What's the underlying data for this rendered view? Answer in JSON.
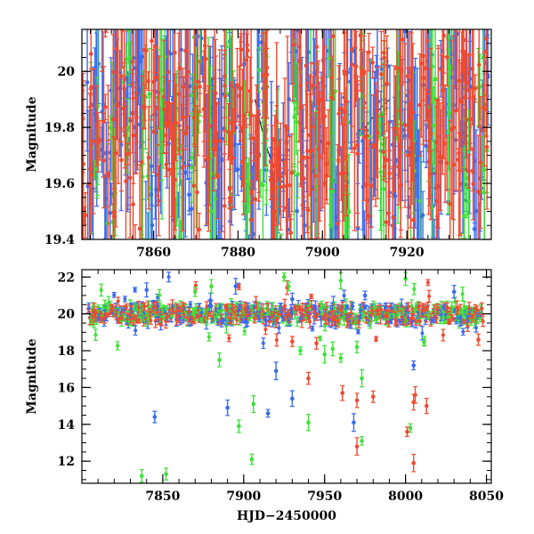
{
  "chart_data": [
    {
      "type": "scatter",
      "title": "",
      "xlabel": "",
      "ylabel": "Magnitude",
      "xlim": [
        7843,
        7940
      ],
      "ylim": [
        20.15,
        19.4
      ],
      "y_inverted": true,
      "x_ticks": [
        "7860",
        "7880",
        "7900",
        "7920"
      ],
      "y_ticks": [
        "19.4",
        "19.6",
        "19.8",
        "20"
      ],
      "grid": false,
      "series": [
        {
          "color": "#3a6bf0",
          "values": [
            [
              7845,
              19.75
            ],
            [
              7847,
              19.9
            ],
            [
              7849,
              19.6
            ],
            [
              7851,
              20.05
            ],
            [
              7853,
              19.7
            ],
            [
              7855,
              19.85
            ],
            [
              7857,
              19.95
            ],
            [
              7859,
              19.55
            ],
            [
              7861,
              19.8
            ],
            [
              7863,
              20.0
            ],
            [
              7865,
              19.65
            ],
            [
              7867,
              19.9
            ],
            [
              7869,
              19.75
            ],
            [
              7871,
              20.05
            ],
            [
              7873,
              19.85
            ],
            [
              7875,
              19.6
            ],
            [
              7877,
              19.95
            ],
            [
              7879,
              19.7
            ],
            [
              7881,
              19.85
            ],
            [
              7883,
              19.5
            ],
            [
              7885,
              19.9
            ],
            [
              7887,
              19.8
            ],
            [
              7889,
              19.45
            ],
            [
              7891,
              19.7
            ],
            [
              7893,
              20.1
            ],
            [
              7895,
              19.6
            ],
            [
              7897,
              19.85
            ],
            [
              7899,
              19.75
            ],
            [
              7901,
              19.95
            ],
            [
              7903,
              19.5
            ],
            [
              7905,
              19.85
            ],
            [
              7907,
              20.05
            ],
            [
              7909,
              19.7
            ],
            [
              7911,
              19.6
            ],
            [
              7913,
              19.9
            ],
            [
              7915,
              19.8
            ],
            [
              7917,
              19.55
            ],
            [
              7919,
              19.95
            ],
            [
              7921,
              19.75
            ],
            [
              7923,
              19.65
            ],
            [
              7925,
              19.9
            ],
            [
              7927,
              19.5
            ],
            [
              7929,
              19.8
            ],
            [
              7931,
              20.0
            ],
            [
              7933,
              19.7
            ],
            [
              7935,
              19.85
            ],
            [
              7937,
              19.6
            ],
            [
              7939,
              19.95
            ]
          ]
        },
        {
          "color": "#3fe03a",
          "values": [
            [
              7846,
              19.8
            ],
            [
              7850,
              19.6
            ],
            [
              7854,
              19.95
            ],
            [
              7858,
              19.7
            ],
            [
              7862,
              19.85
            ],
            [
              7866,
              19.5
            ],
            [
              7870,
              19.9
            ],
            [
              7874,
              19.75
            ],
            [
              7878,
              20.05
            ],
            [
              7882,
              19.6
            ],
            [
              7886,
              19.85
            ],
            [
              7890,
              19.45
            ],
            [
              7894,
              19.9
            ],
            [
              7898,
              19.7
            ],
            [
              7902,
              19.8
            ],
            [
              7906,
              19.55
            ],
            [
              7910,
              19.95
            ],
            [
              7914,
              19.65
            ],
            [
              7918,
              19.85
            ],
            [
              7922,
              19.5
            ],
            [
              7926,
              19.75
            ],
            [
              7930,
              19.9
            ],
            [
              7934,
              19.6
            ],
            [
              7938,
              19.8
            ]
          ]
        },
        {
          "color": "#f04a30",
          "values": [
            [
              7844,
              19.7
            ],
            [
              7846,
              19.85
            ],
            [
              7848,
              19.95
            ],
            [
              7850,
              19.75
            ],
            [
              7852,
              19.9
            ],
            [
              7854,
              19.8
            ],
            [
              7856,
              19.65
            ],
            [
              7858,
              19.95
            ],
            [
              7860,
              19.85
            ],
            [
              7862,
              19.75
            ],
            [
              7864,
              19.9
            ],
            [
              7866,
              19.8
            ],
            [
              7868,
              19.95
            ],
            [
              7870,
              19.7
            ],
            [
              7872,
              19.85
            ],
            [
              7874,
              19.9
            ],
            [
              7876,
              19.75
            ],
            [
              7878,
              19.8
            ],
            [
              7880,
              19.95
            ],
            [
              7882,
              19.85
            ],
            [
              7884,
              19.7
            ],
            [
              7886,
              19.9
            ],
            [
              7888,
              19.55
            ],
            [
              7890,
              19.8
            ],
            [
              7892,
              19.65
            ],
            [
              7894,
              19.9
            ],
            [
              7896,
              19.75
            ],
            [
              7898,
              19.85
            ],
            [
              7900,
              19.7
            ],
            [
              7902,
              19.9
            ],
            [
              7904,
              19.6
            ],
            [
              7906,
              19.8
            ],
            [
              7908,
              19.95
            ],
            [
              7910,
              19.75
            ],
            [
              7912,
              19.85
            ],
            [
              7914,
              19.9
            ],
            [
              7916,
              19.7
            ],
            [
              7918,
              19.8
            ],
            [
              7920,
              19.95
            ],
            [
              7922,
              19.6
            ],
            [
              7924,
              19.85
            ],
            [
              7926,
              19.75
            ],
            [
              7928,
              19.9
            ],
            [
              7930,
              19.8
            ],
            [
              7932,
              19.7
            ],
            [
              7934,
              19.85
            ],
            [
              7936,
              19.75
            ],
            [
              7938,
              19.9
            ]
          ]
        }
      ]
    },
    {
      "type": "scatter",
      "title": "",
      "xlabel": "HJD−2450000",
      "ylabel": "Magnitude",
      "xlim": [
        7800,
        8053
      ],
      "ylim": [
        22.4,
        10.8
      ],
      "y_inverted": true,
      "x_ticks": [
        "7850",
        "7900",
        "7950",
        "8000",
        "8050"
      ],
      "y_ticks": [
        "12",
        "14",
        "16",
        "18",
        "20",
        "22"
      ],
      "grid": false,
      "series": [
        {
          "color": "#3a6bf0",
          "outliers": [
            [
              7845,
              14.4
            ],
            [
              7890,
              14.9
            ],
            [
              7915,
              14.6
            ],
            [
              7930,
              15.4
            ],
            [
              7920,
              16.9
            ],
            [
              7968,
              14.1
            ],
            [
              8005,
              17.2
            ],
            [
              7840,
              21.3
            ],
            [
              7895,
              21.5
            ],
            [
              7930,
              20.8
            ],
            [
              7975,
              21.0
            ],
            [
              8030,
              21.2
            ]
          ]
        },
        {
          "color": "#3fe03a",
          "outliers": [
            [
              7837,
              11.2
            ],
            [
              7852,
              11.3
            ],
            [
              7905,
              12.1
            ],
            [
              7897,
              13.9
            ],
            [
              7940,
              14.1
            ],
            [
              7973,
              13.1
            ],
            [
              7906,
              15.1
            ],
            [
              7973,
              16.5
            ],
            [
              8003,
              13.8
            ],
            [
              7885,
              17.5
            ],
            [
              7935,
              18.0
            ],
            [
              7950,
              17.8
            ],
            [
              7955,
              18.1
            ],
            [
              7960,
              17.6
            ],
            [
              7970,
              18.2
            ],
            [
              7880,
              21.5
            ],
            [
              7925,
              22.0
            ],
            [
              7960,
              21.8
            ],
            [
              8000,
              21.9
            ],
            [
              7870,
              21.2
            ]
          ]
        },
        {
          "color": "#f04a30",
          "outliers": [
            [
              8005,
              11.9
            ],
            [
              7970,
              12.8
            ],
            [
              8001,
              13.6
            ],
            [
              8005,
              15.2
            ],
            [
              8006,
              15.6
            ],
            [
              8013,
              15.0
            ],
            [
              7961,
              15.7
            ],
            [
              7970,
              15.3
            ],
            [
              7980,
              15.5
            ],
            [
              7940,
              16.5
            ],
            [
              7945,
              18.4
            ],
            [
              7930,
              18.5
            ],
            [
              8045,
              18.6
            ]
          ]
        }
      ]
    }
  ]
}
